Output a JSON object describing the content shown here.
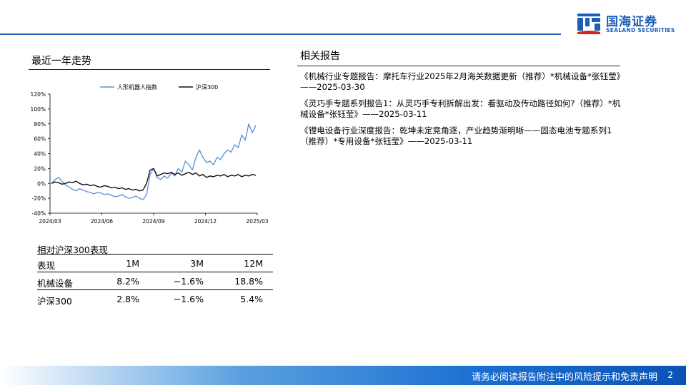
{
  "header": {
    "company_cn": "国海证券",
    "company_en": "SEALAND SECURITIES",
    "brand_color": "#1d5fb6"
  },
  "left": {
    "title": "最近一年走势"
  },
  "chart_data": {
    "type": "line",
    "title": "",
    "xlabel": "",
    "ylabel": "",
    "ylim": [
      -40,
      120
    ],
    "y_ticks": [
      "120%",
      "100%",
      "80%",
      "60%",
      "40%",
      "20%",
      "0%",
      "-20%",
      "-40%"
    ],
    "x_ticks": [
      "2024/03",
      "2024/06",
      "2024/09",
      "2024/12",
      "2025/03"
    ],
    "legend_position": "top",
    "series": [
      {
        "name": "人形机器人指数",
        "color": "#5b8fd6",
        "values": [
          0,
          5,
          8,
          3,
          -2,
          -5,
          -8,
          -10,
          -7,
          -9,
          -11,
          -12,
          -14,
          -12,
          -13,
          -15,
          -14,
          -16,
          -18,
          -17,
          -15,
          -18,
          -20,
          -19,
          -17,
          -20,
          -22,
          -15,
          12,
          20,
          8,
          5,
          10,
          7,
          14,
          10,
          20,
          15,
          30,
          25,
          18,
          35,
          45,
          35,
          28,
          30,
          25,
          35,
          32,
          40,
          45,
          42,
          52,
          48,
          65,
          58,
          80,
          68,
          78
        ]
      },
      {
        "name": "沪深300",
        "color": "#111111",
        "values": [
          0,
          2,
          1,
          -1,
          0,
          2,
          1,
          3,
          0,
          -2,
          -1,
          -3,
          -2,
          -4,
          -5,
          -3,
          -4,
          -6,
          -5,
          -7,
          -6,
          -8,
          -7,
          -9,
          -8,
          -10,
          -9,
          0,
          18,
          20,
          10,
          12,
          14,
          13,
          15,
          12,
          14,
          11,
          13,
          15,
          12,
          14,
          10,
          12,
          8,
          10,
          9,
          11,
          10,
          12,
          9,
          11,
          10,
          12,
          9,
          11,
          10,
          12,
          11
        ]
      }
    ]
  },
  "performance": {
    "title": "相对沪深300表现",
    "headers": [
      "表现",
      "1M",
      "3M",
      "12M"
    ],
    "rows": [
      [
        "机械设备",
        "8.2%",
        "−1.6%",
        "18.8%"
      ],
      [
        "沪深300",
        "2.8%",
        "−1.6%",
        "5.4%"
      ]
    ]
  },
  "right": {
    "title": "相关报告",
    "reports": [
      "《机械行业专题报告：摩托车行业2025年2月海关数据更新（推荐）*机械设备*张钰莹》——2025-03-30",
      "《灵巧手专题系列报告1：从灵巧手专利拆解出发：看驱动及传动路径如何?（推荐）*机械设备*张钰莹》——2025-03-11",
      "《锂电设备行业深度报告：乾坤未定竞角逐，产业趋势渐明晰——固态电池专题系列1（推荐）*专用设备*张钰莹》——2025-03-11"
    ]
  },
  "footer": {
    "disclaimer": "请务必阅读报告附注中的风险提示和免责声明",
    "page": "2"
  }
}
